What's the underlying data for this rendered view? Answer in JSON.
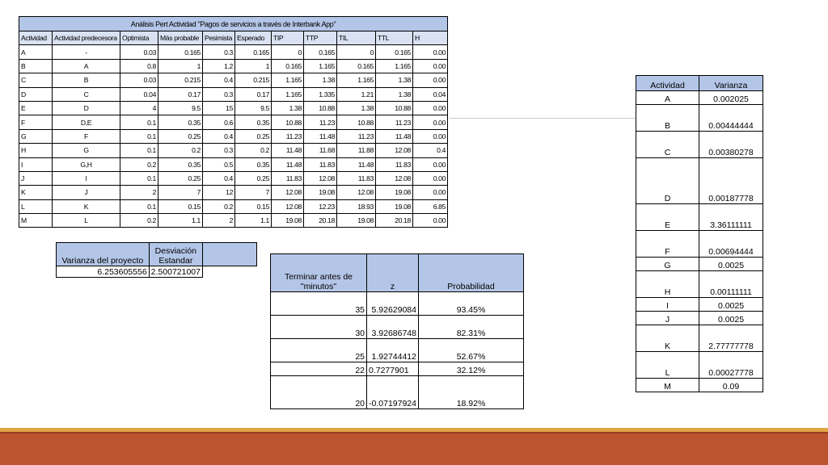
{
  "pert_table": {
    "title": "Análisis Pert Actividad \"Pagos de servicios a través de Interbank App\"",
    "headers": [
      "Actividad",
      "Actividad predecesora",
      "Optimista",
      "Más probable",
      "Pesimista",
      "Esperado",
      "TIP",
      "TTP",
      "TIL",
      "TTL",
      "H"
    ],
    "rows": [
      [
        "A",
        "-",
        "0.03",
        "0.165",
        "0.3",
        "0.165",
        "0",
        "0.165",
        "0",
        "0.165",
        "0.00"
      ],
      [
        "B",
        "A",
        "0.8",
        "1",
        "1.2",
        "1",
        "0.165",
        "1.165",
        "0.165",
        "1.165",
        "0.00"
      ],
      [
        "C",
        "B",
        "0.03",
        "0.215",
        "0.4",
        "0.215",
        "1.165",
        "1.38",
        "1.165",
        "1.38",
        "0.00"
      ],
      [
        "D",
        "C",
        "0.04",
        "0.17",
        "0.3",
        "0.17",
        "1.165",
        "1.335",
        "1.21",
        "1.38",
        "0.04"
      ],
      [
        "E",
        "D",
        "4",
        "9.5",
        "15",
        "9.5",
        "1.38",
        "10.88",
        "1.38",
        "10.88",
        "0.00"
      ],
      [
        "F",
        "D,E",
        "0.1",
        "0.35",
        "0.6",
        "0.35",
        "10.88",
        "11.23",
        "10.88",
        "11.23",
        "0.00"
      ],
      [
        "G",
        "F",
        "0.1",
        "0.25",
        "0.4",
        "0.25",
        "11.23",
        "11.48",
        "11.23",
        "11.48",
        "0.00"
      ],
      [
        "H",
        "G",
        "0.1",
        "0.2",
        "0.3",
        "0.2",
        "11.48",
        "11.68",
        "11.88",
        "12.08",
        "0.4"
      ],
      [
        "I",
        "G,H",
        "0.2",
        "0.35",
        "0.5",
        "0.35",
        "11.48",
        "11.83",
        "11.48",
        "11.83",
        "0.00"
      ],
      [
        "J",
        "I",
        "0.1",
        "0.25",
        "0.4",
        "0.25",
        "11.83",
        "12.08",
        "11.83",
        "12.08",
        "0.00"
      ],
      [
        "K",
        "J",
        "2",
        "7",
        "12",
        "7",
        "12.08",
        "19.08",
        "12.08",
        "19.08",
        "0.00"
      ],
      [
        "L",
        "K",
        "0.1",
        "0.15",
        "0.2",
        "0.15",
        "12.08",
        "12.23",
        "18.93",
        "19.08",
        "6.85"
      ],
      [
        "M",
        "L",
        "0.2",
        "1.1",
        "2",
        "1.1",
        "19.08",
        "20.18",
        "19.08",
        "20.18",
        "0.00"
      ]
    ]
  },
  "project_variance": {
    "headers": [
      "Varianza del proyecto",
      "Desviación Estandar"
    ],
    "values": [
      "6.253605556",
      "2.500721007"
    ]
  },
  "probability_table": {
    "headers": [
      "Terminar antes de \"minutos\"",
      "z",
      "Probabilidad"
    ],
    "rows": [
      [
        "35",
        "5.92629084",
        "93.45%"
      ],
      [
        "30",
        "3.92686748",
        "82.31%"
      ],
      [
        "25",
        "1.92744412",
        "52.67%"
      ],
      [
        "22",
        "0.7277901",
        "32.12%"
      ],
      [
        "20",
        "-0.07197924",
        "18.92%"
      ]
    ]
  },
  "activity_variance": {
    "headers": [
      "Actividad",
      "Varianza"
    ],
    "rows": [
      [
        "A",
        "0.002025"
      ],
      [
        "B",
        "0.00444444"
      ],
      [
        "C",
        "0.00380278"
      ],
      [
        "D",
        "0.00187778"
      ],
      [
        "E",
        "3.36111111"
      ],
      [
        "F",
        "0.00694444"
      ],
      [
        "G",
        "0.0025"
      ],
      [
        "H",
        "0.00111111"
      ],
      [
        "I",
        "0.0025"
      ],
      [
        "J",
        "0.0025"
      ],
      [
        "K",
        "2.77777778"
      ],
      [
        "L",
        "0.00027778"
      ],
      [
        "M",
        "0.09"
      ]
    ]
  },
  "colors": {
    "header_blue": "#b4c6e7",
    "subheader_blue": "#d9e1f2",
    "footer_orange": "#bb542f",
    "footer_gold": "#e0a544"
  }
}
